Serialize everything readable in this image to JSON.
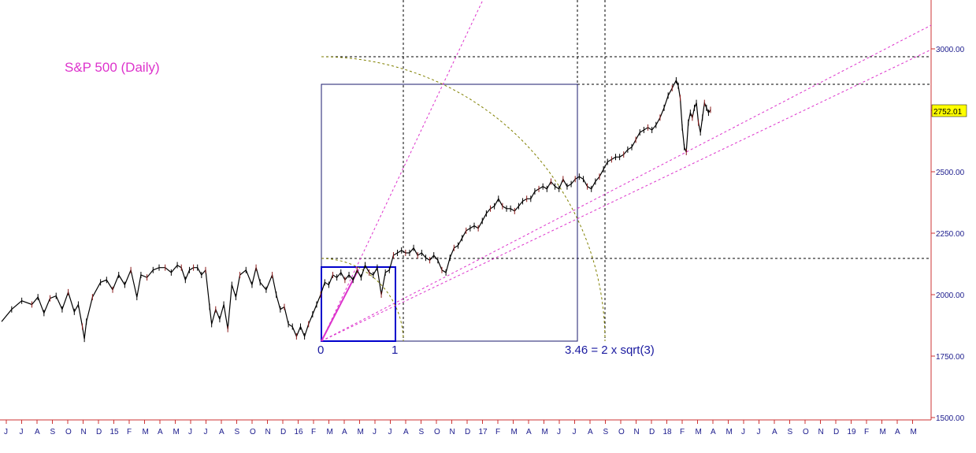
{
  "chart_data": {
    "type": "line",
    "title": "S&P 500  (Daily)",
    "xlabel": "",
    "ylabel": "",
    "ylim": [
      1500,
      3200
    ],
    "yticks": [
      "1500.00",
      "1750.00",
      "2000.00",
      "2250.00",
      "2500.00",
      "2750.00",
      "3000.00"
    ],
    "ytick_values": [
      1500,
      1750,
      2000,
      2250,
      2500,
      2750,
      3000
    ],
    "x_tick_labels": [
      "J",
      "J",
      "A",
      "S",
      "O",
      "N",
      "D",
      "15",
      "F",
      "M",
      "A",
      "M",
      "J",
      "J",
      "A",
      "S",
      "O",
      "N",
      "D",
      "16",
      "F",
      "M",
      "A",
      "M",
      "J",
      "J",
      "A",
      "S",
      "O",
      "N",
      "D",
      "17",
      "F",
      "M",
      "A",
      "M",
      "J",
      "J",
      "A",
      "S",
      "O",
      "N",
      "D",
      "18",
      "F",
      "M",
      "A",
      "M",
      "J",
      "J",
      "A",
      "S",
      "O",
      "N",
      "D",
      "19",
      "F",
      "M",
      "A",
      "M"
    ],
    "last_value_label": "2752.01",
    "annotations": {
      "zero": "0",
      "one": "1",
      "ratio": "3.46 = 2 x sqrt(3)"
    },
    "series": [
      {
        "values": [
          [
            0,
            1890
          ],
          [
            5,
            1940
          ],
          [
            10,
            1975
          ],
          [
            15,
            1960
          ],
          [
            18,
            1990
          ],
          [
            21,
            1925
          ],
          [
            24,
            1985
          ],
          [
            27,
            1995
          ],
          [
            30,
            1940
          ],
          [
            33,
            2010
          ],
          [
            36,
            1930
          ],
          [
            38,
            1960
          ],
          [
            40,
            1870
          ],
          [
            41,
            1820
          ],
          [
            42,
            1890
          ],
          [
            45,
            1990
          ],
          [
            49,
            2050
          ],
          [
            52,
            2060
          ],
          [
            55,
            2020
          ],
          [
            58,
            2080
          ],
          [
            61,
            2040
          ],
          [
            64,
            2100
          ],
          [
            67,
            1990
          ],
          [
            69,
            2080
          ],
          [
            72,
            2070
          ],
          [
            75,
            2100
          ],
          [
            78,
            2110
          ],
          [
            81,
            2110
          ],
          [
            84,
            2090
          ],
          [
            87,
            2120
          ],
          [
            89,
            2110
          ],
          [
            91,
            2060
          ],
          [
            93,
            2100
          ],
          [
            95,
            2110
          ],
          [
            97,
            2110
          ],
          [
            99,
            2080
          ],
          [
            101,
            2100
          ],
          [
            103,
            1950
          ],
          [
            104,
            1880
          ],
          [
            106,
            1940
          ],
          [
            108,
            1900
          ],
          [
            110,
            1960
          ],
          [
            112,
            1860
          ],
          [
            114,
            2040
          ],
          [
            116,
            1990
          ],
          [
            118,
            2080
          ],
          [
            121,
            2100
          ],
          [
            124,
            2040
          ],
          [
            126,
            2110
          ],
          [
            128,
            2050
          ],
          [
            131,
            2020
          ],
          [
            134,
            2080
          ],
          [
            136,
            2000
          ],
          [
            138,
            1940
          ],
          [
            140,
            1950
          ],
          [
            142,
            1880
          ],
          [
            144,
            1870
          ],
          [
            146,
            1830
          ],
          [
            148,
            1870
          ],
          [
            150,
            1830
          ],
          [
            152,
            1880
          ],
          [
            154,
            1920
          ],
          [
            156,
            1960
          ],
          [
            158,
            2000
          ],
          [
            160,
            2050
          ],
          [
            162,
            2040
          ],
          [
            164,
            2080
          ],
          [
            166,
            2070
          ],
          [
            168,
            2090
          ],
          [
            170,
            2060
          ],
          [
            172,
            2080
          ],
          [
            174,
            2060
          ],
          [
            176,
            2100
          ],
          [
            178,
            2070
          ],
          [
            180,
            2120
          ],
          [
            182,
            2090
          ],
          [
            184,
            2080
          ],
          [
            186,
            2110
          ],
          [
            188,
            2000
          ],
          [
            190,
            2090
          ],
          [
            192,
            2100
          ],
          [
            194,
            2160
          ],
          [
            196,
            2170
          ],
          [
            198,
            2180
          ],
          [
            200,
            2170
          ],
          [
            202,
            2170
          ],
          [
            204,
            2190
          ],
          [
            206,
            2160
          ],
          [
            208,
            2170
          ],
          [
            210,
            2150
          ],
          [
            212,
            2140
          ],
          [
            214,
            2160
          ],
          [
            216,
            2140
          ],
          [
            218,
            2100
          ],
          [
            220,
            2090
          ],
          [
            222,
            2150
          ],
          [
            224,
            2190
          ],
          [
            226,
            2200
          ],
          [
            228,
            2230
          ],
          [
            230,
            2260
          ],
          [
            232,
            2270
          ],
          [
            234,
            2280
          ],
          [
            236,
            2270
          ],
          [
            238,
            2300
          ],
          [
            240,
            2330
          ],
          [
            242,
            2350
          ],
          [
            244,
            2360
          ],
          [
            246,
            2390
          ],
          [
            248,
            2360
          ],
          [
            250,
            2350
          ],
          [
            252,
            2350
          ],
          [
            254,
            2340
          ],
          [
            256,
            2360
          ],
          [
            258,
            2380
          ],
          [
            260,
            2390
          ],
          [
            262,
            2390
          ],
          [
            264,
            2420
          ],
          [
            266,
            2430
          ],
          [
            268,
            2440
          ],
          [
            270,
            2430
          ],
          [
            272,
            2460
          ],
          [
            274,
            2440
          ],
          [
            276,
            2430
          ],
          [
            278,
            2470
          ],
          [
            280,
            2440
          ],
          [
            282,
            2450
          ],
          [
            284,
            2470
          ],
          [
            286,
            2480
          ],
          [
            288,
            2470
          ],
          [
            290,
            2440
          ],
          [
            292,
            2430
          ],
          [
            294,
            2460
          ],
          [
            296,
            2480
          ],
          [
            298,
            2510
          ],
          [
            300,
            2540
          ],
          [
            302,
            2550
          ],
          [
            304,
            2560
          ],
          [
            306,
            2560
          ],
          [
            308,
            2570
          ],
          [
            310,
            2590
          ],
          [
            312,
            2600
          ],
          [
            314,
            2630
          ],
          [
            316,
            2660
          ],
          [
            318,
            2670
          ],
          [
            320,
            2680
          ],
          [
            322,
            2670
          ],
          [
            324,
            2690
          ],
          [
            326,
            2720
          ],
          [
            328,
            2760
          ],
          [
            330,
            2810
          ],
          [
            332,
            2840
          ],
          [
            334,
            2872
          ],
          [
            335,
            2850
          ],
          [
            336,
            2800
          ],
          [
            337,
            2680
          ],
          [
            338,
            2600
          ],
          [
            339,
            2580
          ],
          [
            340,
            2700
          ],
          [
            341,
            2740
          ],
          [
            342,
            2720
          ],
          [
            343,
            2760
          ],
          [
            344,
            2780
          ],
          [
            345,
            2700
          ],
          [
            346,
            2660
          ],
          [
            347,
            2720
          ],
          [
            348,
            2780
          ],
          [
            349,
            2760
          ],
          [
            350,
            2740
          ],
          [
            351,
            2752
          ]
        ]
      }
    ],
    "grid": false,
    "colors": {
      "price": "#000000",
      "magenta": "#dd33cc",
      "blue_box": "#0000cc",
      "thin_box": "#1a1a6e",
      "arc": "#808000",
      "axis": "#cc3333",
      "badge_bg": "#ffff00"
    }
  }
}
